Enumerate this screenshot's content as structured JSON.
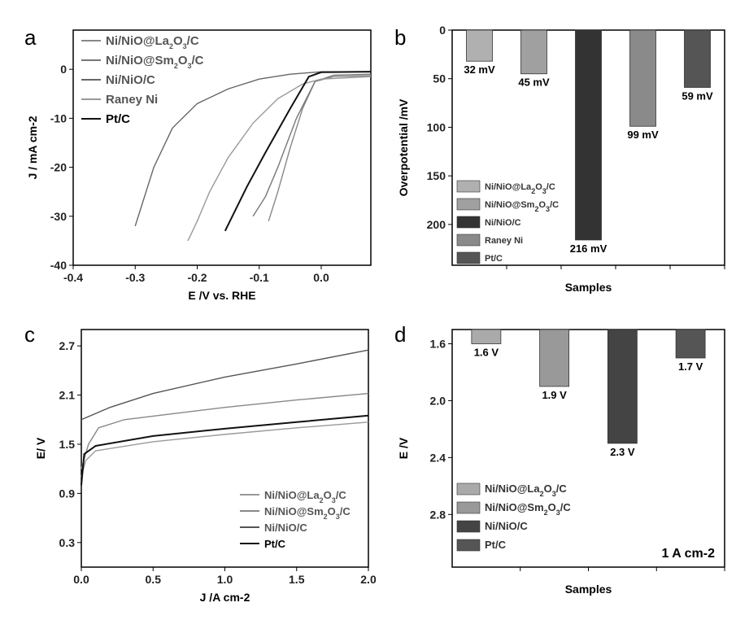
{
  "chart_data": [
    {
      "panel": "a",
      "type": "line",
      "xlabel": "E /V vs. RHE",
      "ylabel": "J / mA cm-2",
      "xlim": [
        -0.4,
        0.08
      ],
      "ylim": [
        -40,
        8
      ],
      "xticks": [
        "-0.4",
        "-0.3",
        "-0.2",
        "-0.1",
        "0.0"
      ],
      "xtickvals": [
        -0.4,
        -0.3,
        -0.2,
        -0.1,
        0
      ],
      "yticks": [
        "0",
        "-10",
        "-20",
        "-30",
        "-40"
      ],
      "ytickvals": [
        0,
        -10,
        -20,
        -30,
        -40
      ],
      "legend": "top-left",
      "series": [
        {
          "name": "Ni/NiO@La2O3/C",
          "color": "#888888",
          "points": [
            [
              0.08,
              -1.3
            ],
            [
              0.02,
              -1.5
            ],
            [
              -0.01,
              -2.5
            ],
            [
              -0.03,
              -8
            ],
            [
              -0.05,
              -16
            ],
            [
              -0.07,
              -25
            ],
            [
              -0.085,
              -31
            ]
          ]
        },
        {
          "name": "Ni/NiO@Sm2O3/C",
          "color": "#777777",
          "points": [
            [
              0.08,
              -1
            ],
            [
              0.02,
              -1.2
            ],
            [
              -0.01,
              -2.5
            ],
            [
              -0.04,
              -10
            ],
            [
              -0.07,
              -20
            ],
            [
              -0.09,
              -26
            ],
            [
              -0.11,
              -30
            ]
          ]
        },
        {
          "name": "Ni/NiO/C",
          "color": "#666666",
          "points": [
            [
              0.08,
              -0.5
            ],
            [
              0,
              -0.5
            ],
            [
              -0.05,
              -1
            ],
            [
              -0.1,
              -2
            ],
            [
              -0.15,
              -4
            ],
            [
              -0.2,
              -7
            ],
            [
              -0.24,
              -12
            ],
            [
              -0.27,
              -20
            ],
            [
              -0.3,
              -32
            ]
          ]
        },
        {
          "name": "Raney Ni",
          "color": "#999999",
          "points": [
            [
              0.08,
              -1.5
            ],
            [
              0,
              -2
            ],
            [
              -0.03,
              -3
            ],
            [
              -0.07,
              -6
            ],
            [
              -0.11,
              -11
            ],
            [
              -0.15,
              -18
            ],
            [
              -0.18,
              -25
            ],
            [
              -0.2,
              -31
            ],
            [
              -0.215,
              -35
            ]
          ]
        },
        {
          "name": "Pt/C",
          "color": "#111111",
          "points": [
            [
              0.08,
              -0.5
            ],
            [
              0,
              -0.6
            ],
            [
              -0.02,
              -1.5
            ],
            [
              -0.05,
              -8
            ],
            [
              -0.09,
              -17
            ],
            [
              -0.12,
              -24
            ],
            [
              -0.155,
              -33
            ]
          ]
        }
      ]
    },
    {
      "panel": "b",
      "type": "bar",
      "xlabel": "Samples",
      "ylabel": "Overpotential /mV",
      "ylim": [
        0,
        242
      ],
      "inverted": true,
      "yticks": [
        "0",
        "50",
        "100",
        "150",
        "200"
      ],
      "ytickvals": [
        0,
        50,
        100,
        150,
        200
      ],
      "legend": "bottom-left",
      "categories": [
        "Ni/NiO@La2O3/C",
        "Ni/NiO@Sm2O3/C",
        "Ni/NiO/C",
        "Raney Ni",
        "Pt/C"
      ],
      "values": [
        32,
        45,
        216,
        99,
        59
      ],
      "labels": [
        "32 mV",
        "45 mV",
        "216 mV",
        "99 mV",
        "59 mV"
      ],
      "colors": [
        "#b0b0b0",
        "#a0a0a0",
        "#333333",
        "#8a8a8a",
        "#555555"
      ]
    },
    {
      "panel": "c",
      "type": "line",
      "xlabel": "J /A cm-2",
      "ylabel": "E/ V",
      "xlim": [
        0,
        2
      ],
      "ylim": [
        0,
        2.9
      ],
      "xticks": [
        "0.0",
        "0.5",
        "1.0",
        "1.5",
        "2.0"
      ],
      "xtickvals": [
        0,
        0.5,
        1,
        1.5,
        2
      ],
      "yticks": [
        "0.3",
        "0.9",
        "1.5",
        "2.1",
        "2.7"
      ],
      "ytickvals": [
        0.3,
        0.9,
        1.5,
        2.1,
        2.7
      ],
      "legend": "bottom-right",
      "series": [
        {
          "name": "Ni/NiO@La2O3/C",
          "color": "#999999",
          "points": [
            [
              0,
              1.1
            ],
            [
              0.03,
              1.3
            ],
            [
              0.1,
              1.42
            ],
            [
              0.5,
              1.53
            ],
            [
              1,
              1.62
            ],
            [
              1.5,
              1.7
            ],
            [
              2,
              1.77
            ]
          ]
        },
        {
          "name": "Ni/NiO@Sm2O3/C",
          "color": "#888888",
          "points": [
            [
              0,
              1.2
            ],
            [
              0.05,
              1.5
            ],
            [
              0.12,
              1.7
            ],
            [
              0.3,
              1.8
            ],
            [
              1,
              1.95
            ],
            [
              1.5,
              2.04
            ],
            [
              2,
              2.12
            ]
          ]
        },
        {
          "name": "Ni/NiO/C",
          "color": "#555555",
          "points": [
            [
              0,
              1.8
            ],
            [
              0.2,
              1.95
            ],
            [
              0.5,
              2.12
            ],
            [
              1,
              2.32
            ],
            [
              1.5,
              2.48
            ],
            [
              2,
              2.65
            ]
          ]
        },
        {
          "name": "Pt/C",
          "color": "#111111",
          "points": [
            [
              0,
              1.0
            ],
            [
              0.02,
              1.38
            ],
            [
              0.1,
              1.48
            ],
            [
              0.5,
              1.6
            ],
            [
              1,
              1.69
            ],
            [
              1.5,
              1.77
            ],
            [
              2,
              1.85
            ]
          ]
        }
      ]
    },
    {
      "panel": "d",
      "type": "bar",
      "xlabel": "Samples",
      "ylabel": "E /V",
      "ylim": [
        1.5,
        3.17
      ],
      "inverted": true,
      "yticks": [
        "1.6",
        "2.0",
        "2.4",
        "2.8"
      ],
      "ytickvals": [
        1.6,
        2.0,
        2.4,
        2.8
      ],
      "legend": "bottom-left",
      "annotation": "1 A cm-2",
      "categories": [
        "Ni/NiO@La2O3/C",
        "Ni/NiO@Sm2O3/C",
        "Ni/NiO/C",
        "Pt/C"
      ],
      "values": [
        1.6,
        1.9,
        2.3,
        1.7
      ],
      "labels": [
        "1.6 V",
        "1.9 V",
        "2.3 V",
        "1.7 V"
      ],
      "colors": [
        "#aaaaaa",
        "#999999",
        "#444444",
        "#555555"
      ]
    }
  ],
  "panel_letters": [
    "a",
    "b",
    "c",
    "d"
  ]
}
